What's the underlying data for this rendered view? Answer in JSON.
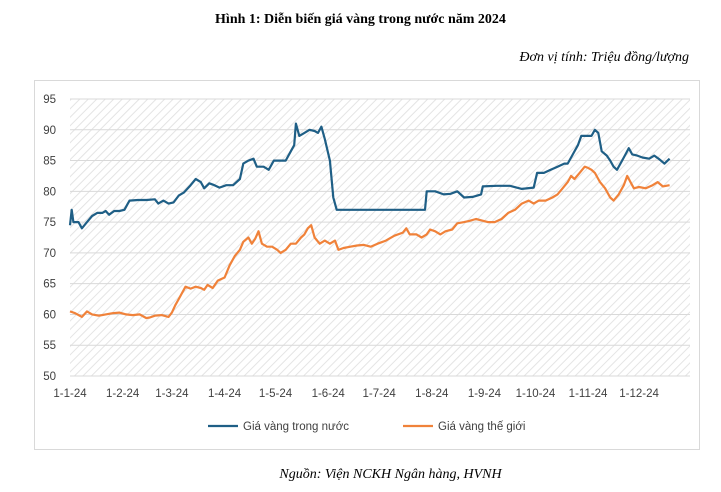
{
  "figure": {
    "title": "Hình  1: Diễn biến giá vàng trong nước năm 2024",
    "unit": "Đơn vị tính: Triệu đồng/lượng",
    "source": "Nguồn: Viện NCKH Ngân hàng, HVNH"
  },
  "colors": {
    "domestic": "#1f5f86",
    "world": "#f0823a",
    "grid": "#d9d9d9",
    "hatch": "#e6e6e6"
  },
  "chart_data": {
    "type": "line",
    "title": "Hình  1: Diễn biến giá vàng trong nước năm 2024",
    "subtitle": "Đơn vị tính: Triệu đồng/lượng",
    "ylim": [
      50,
      95
    ],
    "yticks": [
      50,
      55,
      60,
      65,
      70,
      75,
      80,
      85,
      90,
      95
    ],
    "xlim": [
      "2024-01-01",
      "2024-12-31"
    ],
    "xtick_labels": [
      "1-1-24",
      "1-2-24",
      "1-3-24",
      "1-4-24",
      "1-5-24",
      "1-6-24",
      "1-7-24",
      "1-8-24",
      "1-9-24",
      "1-10-24",
      "1-11-24",
      "1-12-24"
    ],
    "xtick_dates": [
      "2024-01-01",
      "2024-02-01",
      "2024-03-01",
      "2024-04-01",
      "2024-05-01",
      "2024-06-01",
      "2024-07-01",
      "2024-08-01",
      "2024-09-01",
      "2024-10-01",
      "2024-11-01",
      "2024-12-01"
    ],
    "legend_position": "bottom",
    "series": [
      {
        "name": "Giá vàng trong nước",
        "color": "#1f5f86",
        "points": [
          [
            "2024-01-01",
            74.5
          ],
          [
            "2024-01-02",
            77.0
          ],
          [
            "2024-01-03",
            75.0
          ],
          [
            "2024-01-06",
            75.0
          ],
          [
            "2024-01-08",
            74.0
          ],
          [
            "2024-01-11",
            75.0
          ],
          [
            "2024-01-14",
            76.0
          ],
          [
            "2024-01-17",
            76.5
          ],
          [
            "2024-01-20",
            76.5
          ],
          [
            "2024-01-22",
            76.8
          ],
          [
            "2024-01-24",
            76.2
          ],
          [
            "2024-01-27",
            76.8
          ],
          [
            "2024-01-30",
            76.8
          ],
          [
            "2024-02-02",
            77.0
          ],
          [
            "2024-02-05",
            78.5
          ],
          [
            "2024-02-10",
            78.6
          ],
          [
            "2024-02-15",
            78.6
          ],
          [
            "2024-02-20",
            78.7
          ],
          [
            "2024-02-22",
            78.0
          ],
          [
            "2024-02-25",
            78.5
          ],
          [
            "2024-02-28",
            78.0
          ],
          [
            "2024-03-02",
            78.2
          ],
          [
            "2024-03-05",
            79.3
          ],
          [
            "2024-03-08",
            79.8
          ],
          [
            "2024-03-12",
            81.0
          ],
          [
            "2024-03-15",
            82.0
          ],
          [
            "2024-03-18",
            81.5
          ],
          [
            "2024-03-20",
            80.5
          ],
          [
            "2024-03-23",
            81.3
          ],
          [
            "2024-03-26",
            81.0
          ],
          [
            "2024-03-29",
            80.6
          ],
          [
            "2024-04-02",
            81.0
          ],
          [
            "2024-04-06",
            81.0
          ],
          [
            "2024-04-10",
            82.0
          ],
          [
            "2024-04-12",
            84.5
          ],
          [
            "2024-04-15",
            85.0
          ],
          [
            "2024-04-18",
            85.3
          ],
          [
            "2024-04-20",
            84.0
          ],
          [
            "2024-04-24",
            84.0
          ],
          [
            "2024-04-27",
            83.5
          ],
          [
            "2024-04-30",
            85.0
          ],
          [
            "2024-05-04",
            85.0
          ],
          [
            "2024-05-07",
            85.0
          ],
          [
            "2024-05-10",
            86.5
          ],
          [
            "2024-05-12",
            87.5
          ],
          [
            "2024-05-13",
            91.0
          ],
          [
            "2024-05-15",
            89.0
          ],
          [
            "2024-05-18",
            89.5
          ],
          [
            "2024-05-21",
            90.0
          ],
          [
            "2024-05-24",
            89.8
          ],
          [
            "2024-05-26",
            89.5
          ],
          [
            "2024-05-28",
            90.5
          ],
          [
            "2024-05-30",
            88.5
          ],
          [
            "2024-06-02",
            85.0
          ],
          [
            "2024-06-04",
            79.0
          ],
          [
            "2024-06-06",
            77.0
          ],
          [
            "2024-06-15",
            77.0
          ],
          [
            "2024-07-01",
            77.0
          ],
          [
            "2024-07-15",
            77.0
          ],
          [
            "2024-07-28",
            77.0
          ],
          [
            "2024-07-29",
            80.0
          ],
          [
            "2024-08-03",
            80.0
          ],
          [
            "2024-08-08",
            79.5
          ],
          [
            "2024-08-12",
            79.6
          ],
          [
            "2024-08-16",
            80.0
          ],
          [
            "2024-08-20",
            79.0
          ],
          [
            "2024-08-25",
            79.1
          ],
          [
            "2024-08-30",
            79.5
          ],
          [
            "2024-08-31",
            80.8
          ],
          [
            "2024-09-08",
            80.9
          ],
          [
            "2024-09-16",
            80.9
          ],
          [
            "2024-09-23",
            80.4
          ],
          [
            "2024-09-30",
            80.6
          ],
          [
            "2024-10-02",
            83.0
          ],
          [
            "2024-10-06",
            83.0
          ],
          [
            "2024-10-10",
            83.5
          ],
          [
            "2024-10-14",
            84.0
          ],
          [
            "2024-10-18",
            84.5
          ],
          [
            "2024-10-20",
            84.5
          ],
          [
            "2024-10-23",
            86.0
          ],
          [
            "2024-10-26",
            87.5
          ],
          [
            "2024-10-28",
            89.0
          ],
          [
            "2024-10-31",
            89.0
          ],
          [
            "2024-11-03",
            89.0
          ],
          [
            "2024-11-05",
            90.0
          ],
          [
            "2024-11-07",
            89.5
          ],
          [
            "2024-11-09",
            86.5
          ],
          [
            "2024-11-12",
            85.8
          ],
          [
            "2024-11-14",
            85.0
          ],
          [
            "2024-11-16",
            84.0
          ],
          [
            "2024-11-18",
            83.5
          ],
          [
            "2024-11-21",
            85.0
          ],
          [
            "2024-11-23",
            86.0
          ],
          [
            "2024-11-25",
            87.0
          ],
          [
            "2024-11-27",
            86.0
          ],
          [
            "2024-11-30",
            85.8
          ],
          [
            "2024-12-03",
            85.5
          ],
          [
            "2024-12-07",
            85.3
          ],
          [
            "2024-12-10",
            85.8
          ],
          [
            "2024-12-13",
            85.2
          ],
          [
            "2024-12-16",
            84.5
          ],
          [
            "2024-12-19",
            85.3
          ]
        ]
      },
      {
        "name": "Giá vàng thế giới",
        "color": "#f0823a",
        "points": [
          [
            "2024-01-01",
            60.5
          ],
          [
            "2024-01-04",
            60.2
          ],
          [
            "2024-01-08",
            59.6
          ],
          [
            "2024-01-11",
            60.5
          ],
          [
            "2024-01-14",
            60.0
          ],
          [
            "2024-01-18",
            59.8
          ],
          [
            "2024-01-22",
            60.0
          ],
          [
            "2024-01-26",
            60.2
          ],
          [
            "2024-01-30",
            60.3
          ],
          [
            "2024-02-03",
            60.0
          ],
          [
            "2024-02-07",
            59.9
          ],
          [
            "2024-02-11",
            60.0
          ],
          [
            "2024-02-15",
            59.4
          ],
          [
            "2024-02-17",
            59.5
          ],
          [
            "2024-02-20",
            59.8
          ],
          [
            "2024-02-24",
            59.9
          ],
          [
            "2024-02-28",
            59.6
          ],
          [
            "2024-03-01",
            60.3
          ],
          [
            "2024-03-03",
            61.5
          ],
          [
            "2024-03-05",
            62.5
          ],
          [
            "2024-03-07",
            63.5
          ],
          [
            "2024-03-09",
            64.5
          ],
          [
            "2024-03-12",
            64.2
          ],
          [
            "2024-03-15",
            64.5
          ],
          [
            "2024-03-18",
            64.3
          ],
          [
            "2024-03-20",
            64.0
          ],
          [
            "2024-03-22",
            64.8
          ],
          [
            "2024-03-25",
            64.3
          ],
          [
            "2024-03-28",
            65.5
          ],
          [
            "2024-04-01",
            66.0
          ],
          [
            "2024-04-04",
            68.0
          ],
          [
            "2024-04-07",
            69.5
          ],
          [
            "2024-04-10",
            70.5
          ],
          [
            "2024-04-12",
            71.8
          ],
          [
            "2024-04-15",
            72.5
          ],
          [
            "2024-04-17",
            71.5
          ],
          [
            "2024-04-19",
            72.3
          ],
          [
            "2024-04-21",
            73.5
          ],
          [
            "2024-04-23",
            71.5
          ],
          [
            "2024-04-26",
            71.0
          ],
          [
            "2024-04-29",
            71.0
          ],
          [
            "2024-05-02",
            70.5
          ],
          [
            "2024-05-04",
            70.0
          ],
          [
            "2024-05-07",
            70.5
          ],
          [
            "2024-05-10",
            71.5
          ],
          [
            "2024-05-13",
            71.5
          ],
          [
            "2024-05-16",
            72.5
          ],
          [
            "2024-05-18",
            73.0
          ],
          [
            "2024-05-20",
            74.0
          ],
          [
            "2024-05-22",
            74.5
          ],
          [
            "2024-05-24",
            72.5
          ],
          [
            "2024-05-27",
            71.5
          ],
          [
            "2024-05-30",
            72.0
          ],
          [
            "2024-06-02",
            71.5
          ],
          [
            "2024-06-05",
            72.0
          ],
          [
            "2024-06-07",
            70.5
          ],
          [
            "2024-06-10",
            70.8
          ],
          [
            "2024-06-14",
            71.0
          ],
          [
            "2024-06-18",
            71.2
          ],
          [
            "2024-06-22",
            71.3
          ],
          [
            "2024-06-26",
            71.0
          ],
          [
            "2024-06-30",
            71.5
          ],
          [
            "2024-07-05",
            72.0
          ],
          [
            "2024-07-10",
            72.8
          ],
          [
            "2024-07-15",
            73.3
          ],
          [
            "2024-07-17",
            74.0
          ],
          [
            "2024-07-19",
            73.0
          ],
          [
            "2024-07-23",
            73.0
          ],
          [
            "2024-07-26",
            72.5
          ],
          [
            "2024-07-29",
            73.0
          ],
          [
            "2024-07-31",
            73.8
          ],
          [
            "2024-08-03",
            73.5
          ],
          [
            "2024-08-06",
            73.0
          ],
          [
            "2024-08-09",
            73.5
          ],
          [
            "2024-08-13",
            73.8
          ],
          [
            "2024-08-16",
            74.8
          ],
          [
            "2024-08-20",
            75.0
          ],
          [
            "2024-08-23",
            75.2
          ],
          [
            "2024-08-27",
            75.5
          ],
          [
            "2024-08-30",
            75.3
          ],
          [
            "2024-09-03",
            75.0
          ],
          [
            "2024-09-07",
            75.0
          ],
          [
            "2024-09-11",
            75.5
          ],
          [
            "2024-09-15",
            76.5
          ],
          [
            "2024-09-19",
            77.0
          ],
          [
            "2024-09-23",
            78.0
          ],
          [
            "2024-09-27",
            78.5
          ],
          [
            "2024-09-30",
            78.0
          ],
          [
            "2024-10-03",
            78.5
          ],
          [
            "2024-10-07",
            78.5
          ],
          [
            "2024-10-11",
            79.0
          ],
          [
            "2024-10-14",
            79.5
          ],
          [
            "2024-10-17",
            80.5
          ],
          [
            "2024-10-20",
            81.5
          ],
          [
            "2024-10-22",
            82.5
          ],
          [
            "2024-10-24",
            82.0
          ],
          [
            "2024-10-27",
            83.0
          ],
          [
            "2024-10-30",
            84.0
          ],
          [
            "2024-11-01",
            83.8
          ],
          [
            "2024-11-03",
            83.5
          ],
          [
            "2024-11-05",
            83.0
          ],
          [
            "2024-11-08",
            81.5
          ],
          [
            "2024-11-11",
            80.5
          ],
          [
            "2024-11-14",
            79.0
          ],
          [
            "2024-11-16",
            78.5
          ],
          [
            "2024-11-19",
            79.5
          ],
          [
            "2024-11-22",
            81.0
          ],
          [
            "2024-11-24",
            82.5
          ],
          [
            "2024-11-26",
            81.5
          ],
          [
            "2024-11-28",
            80.5
          ],
          [
            "2024-12-01",
            80.7
          ],
          [
            "2024-12-05",
            80.5
          ],
          [
            "2024-12-09",
            81.0
          ],
          [
            "2024-12-12",
            81.5
          ],
          [
            "2024-12-15",
            80.8
          ],
          [
            "2024-12-19",
            81.0
          ]
        ]
      }
    ]
  }
}
